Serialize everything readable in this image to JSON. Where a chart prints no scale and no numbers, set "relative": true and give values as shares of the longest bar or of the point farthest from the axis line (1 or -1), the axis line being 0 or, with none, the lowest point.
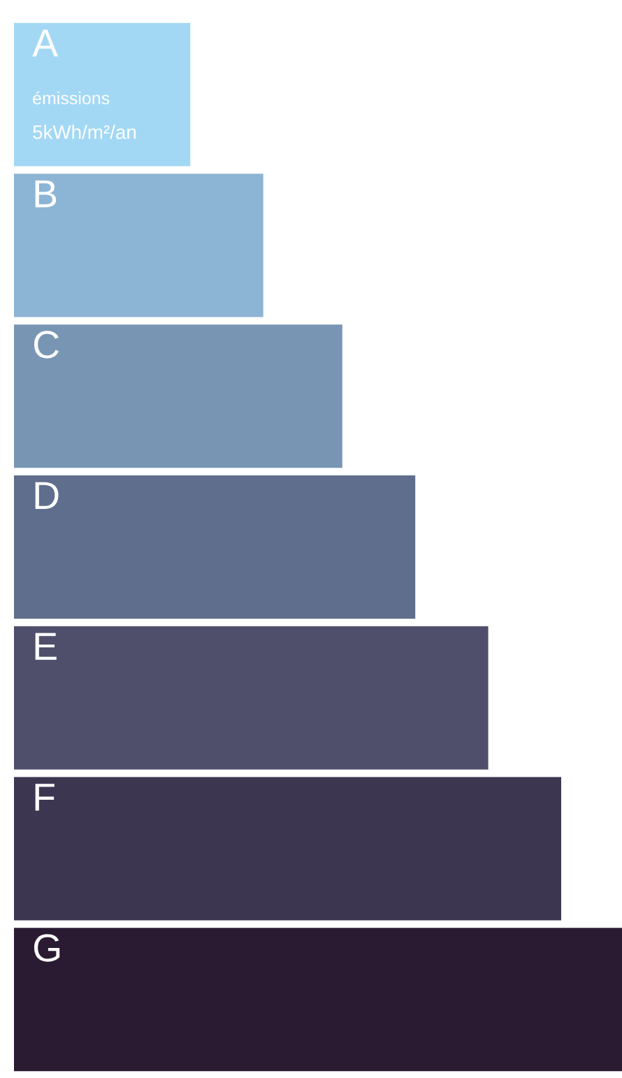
{
  "chart_data": {
    "type": "bar",
    "orientation": "horizontal",
    "relative": true,
    "categories": [
      "A",
      "B",
      "C",
      "D",
      "E",
      "F",
      "G"
    ],
    "values": [
      0.29,
      0.41,
      0.54,
      0.66,
      0.78,
      0.9,
      1
    ],
    "colors": [
      "#a3d8f5",
      "#8cb4d4",
      "#7896b4",
      "#5f6e8c",
      "#4f4f6c",
      "#3c3651",
      "#2a1b33"
    ],
    "annotations": [
      "émissions",
      "5kWh/m²/an"
    ]
  }
}
